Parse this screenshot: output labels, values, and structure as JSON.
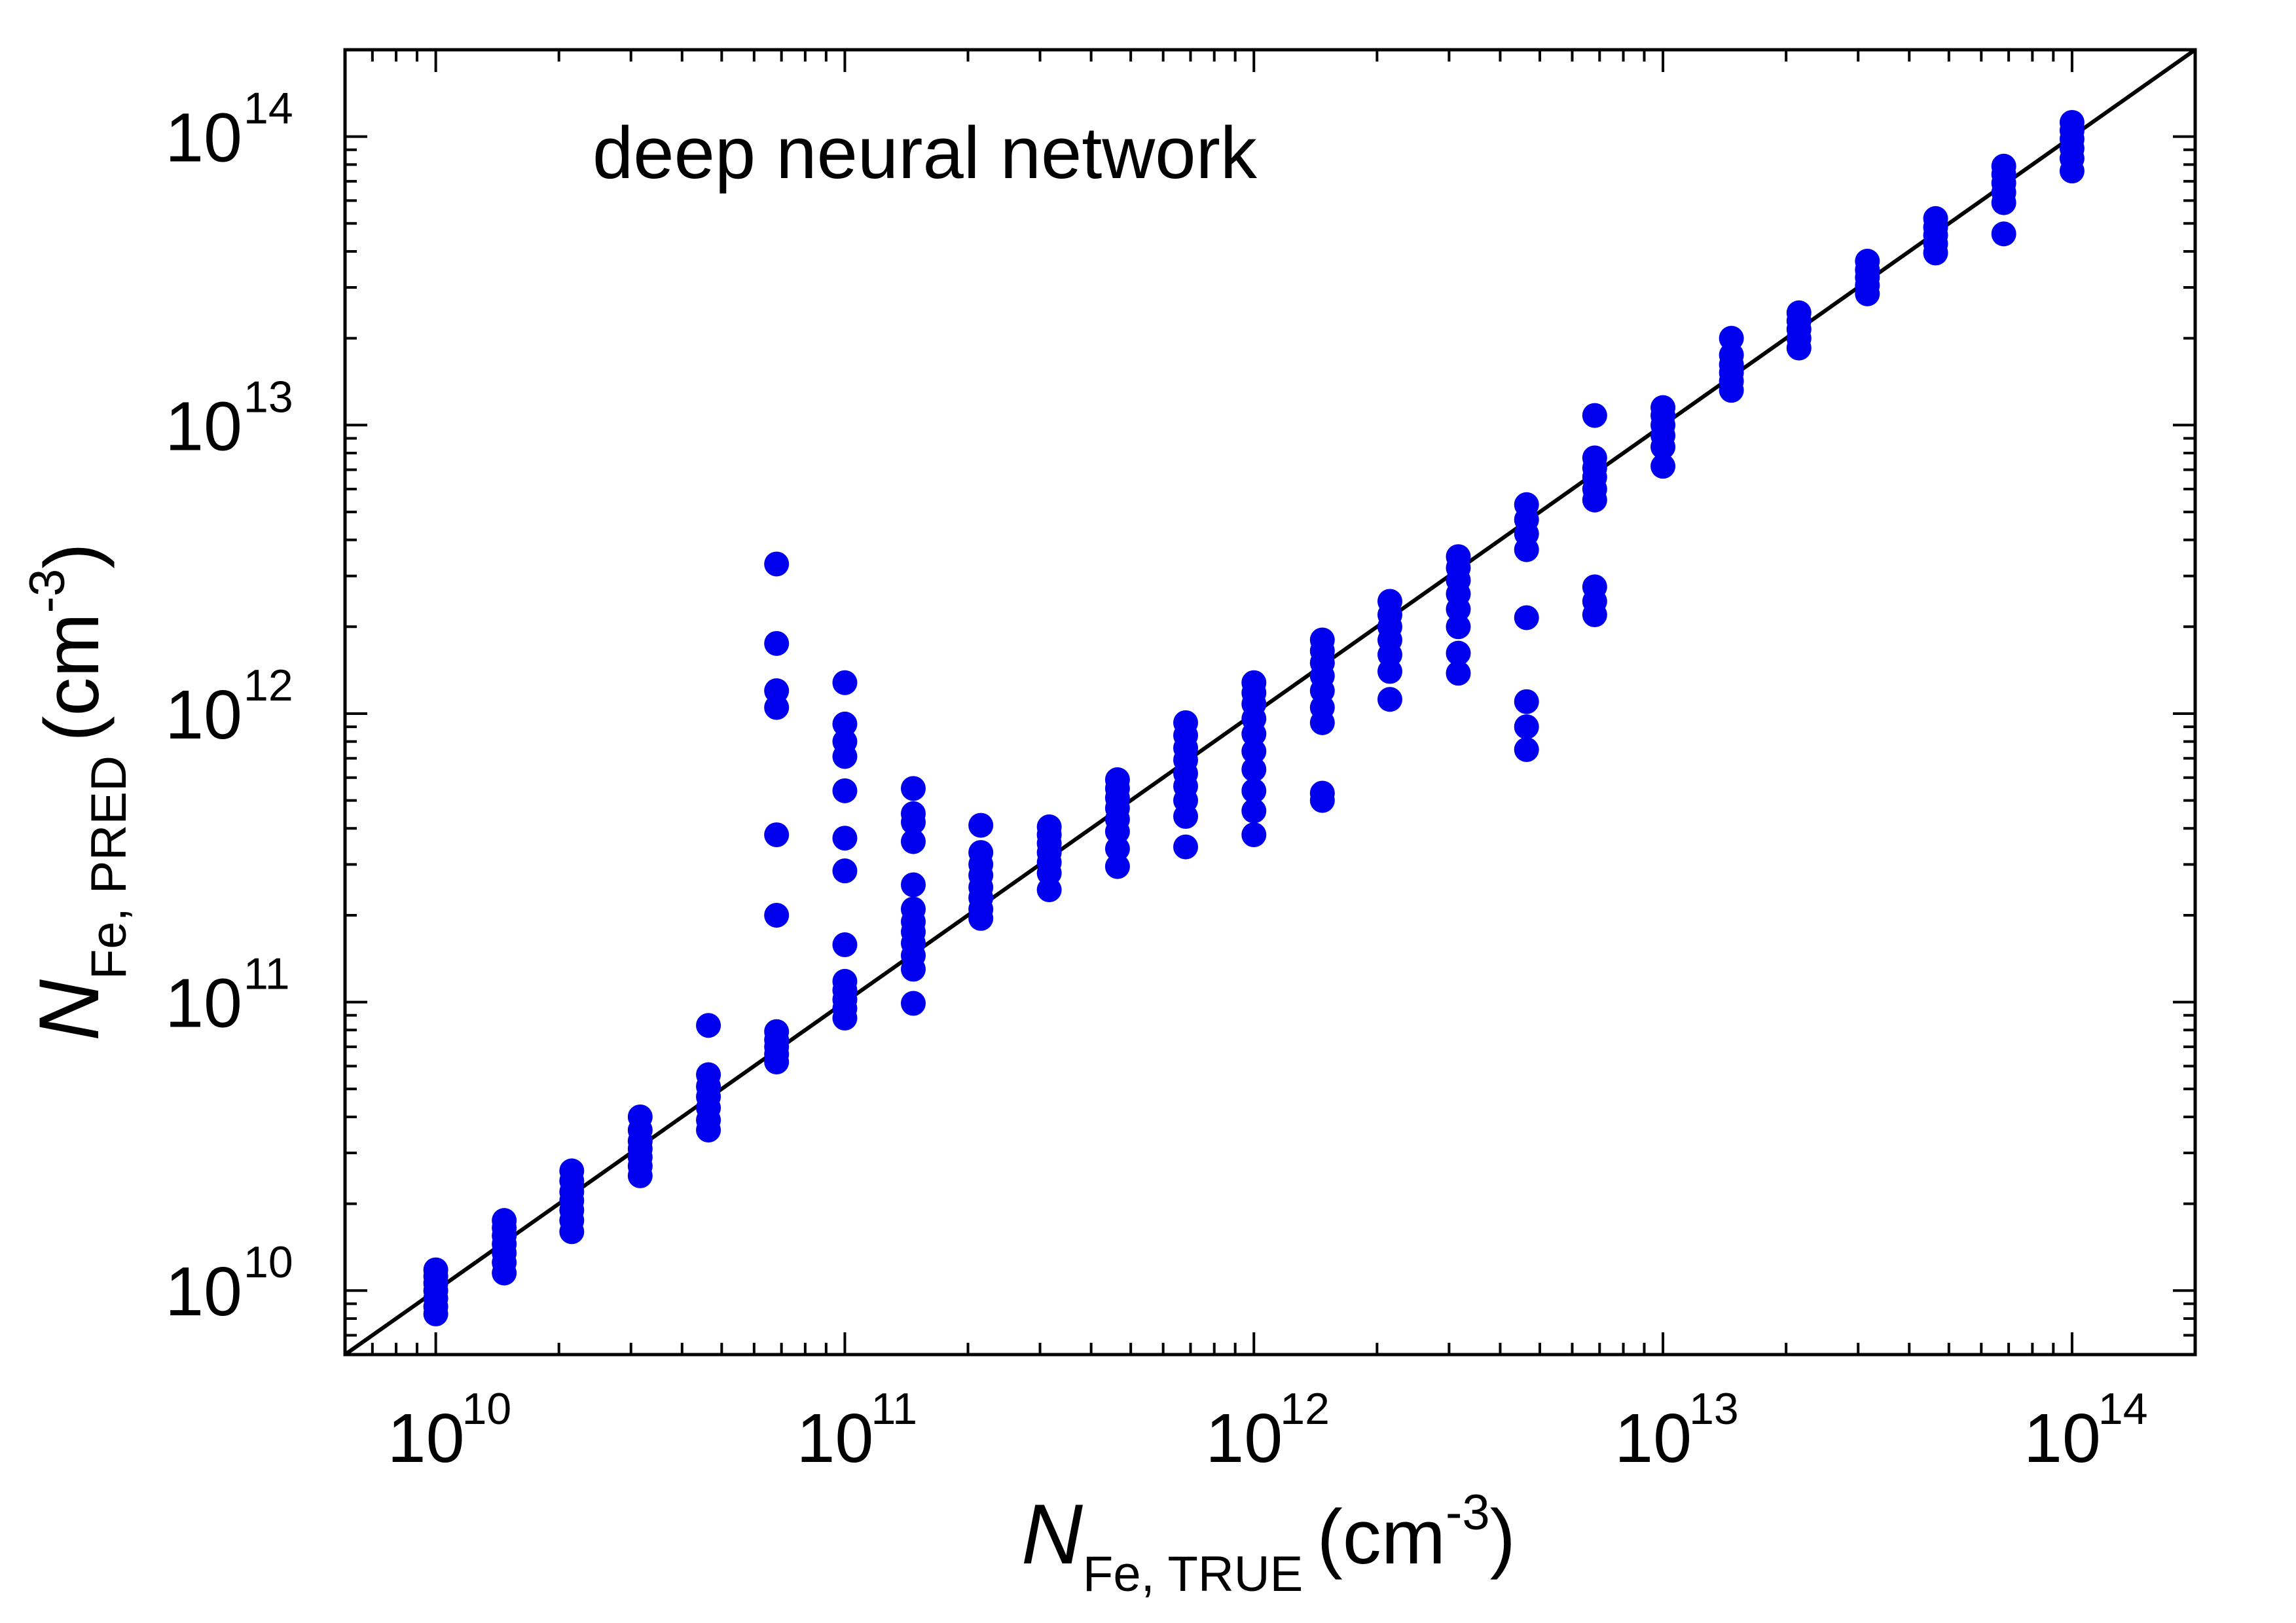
{
  "chart_data": {
    "type": "scatter",
    "title": "deep neural network",
    "x_axis": {
      "label_main": "N",
      "label_sub": "Fe, TRUE",
      "label_unit": "(cm",
      "label_exp": "-3",
      "label_close": ")",
      "scale": "log",
      "range": [
        6000000000.0,
        200000000000000.0
      ],
      "ticks": [
        {
          "base": "10",
          "exp": "10",
          "value": 10000000000.0
        },
        {
          "base": "10",
          "exp": "11",
          "value": 100000000000.0
        },
        {
          "base": "10",
          "exp": "12",
          "value": 1000000000000.0
        },
        {
          "base": "10",
          "exp": "13",
          "value": 10000000000000.0
        },
        {
          "base": "10",
          "exp": "14",
          "value": 100000000000000.0
        }
      ]
    },
    "y_axis": {
      "label_main": "N",
      "label_sub": "Fe, PRED",
      "label_unit": "(cm",
      "label_exp": "-3",
      "label_close": ")",
      "scale": "log",
      "range": [
        6000000000.0,
        200000000000000.0
      ],
      "ticks": [
        {
          "base": "10",
          "exp": "10",
          "value": 10000000000.0
        },
        {
          "base": "10",
          "exp": "11",
          "value": 100000000000.0
        },
        {
          "base": "10",
          "exp": "12",
          "value": 1000000000000.0
        },
        {
          "base": "10",
          "exp": "13",
          "value": 10000000000000.0
        },
        {
          "base": "10",
          "exp": "14",
          "value": 100000000000000.0
        }
      ]
    },
    "grid": false,
    "marker_color": "#0000ee",
    "reference_line": {
      "type": "y = x",
      "color": "#000000"
    },
    "series": [
      {
        "points": [
          [
            10000000000.0,
            8300000000.0
          ],
          [
            10000000000.0,
            8800000000.0
          ],
          [
            10000000000.0,
            9400000000.0
          ],
          [
            10000000000.0,
            10000000000.0
          ],
          [
            10000000000.0,
            10600000000.0
          ],
          [
            10000000000.0,
            11200000000.0
          ],
          [
            10000000000.0,
            11800000000.0
          ],
          [
            14700000000.0,
            11500000000.0
          ],
          [
            14700000000.0,
            12500000000.0
          ],
          [
            14700000000.0,
            13500000000.0
          ],
          [
            14700000000.0,
            14500000000.0
          ],
          [
            14700000000.0,
            15500000000.0
          ],
          [
            14700000000.0,
            16500000000.0
          ],
          [
            14700000000.0,
            17500000000.0
          ],
          [
            21500000000.0,
            16000000000.0
          ],
          [
            21500000000.0,
            17500000000.0
          ],
          [
            21500000000.0,
            19000000000.0
          ],
          [
            21500000000.0,
            20500000000.0
          ],
          [
            21500000000.0,
            22000000000.0
          ],
          [
            21500000000.0,
            24000000000.0
          ],
          [
            21500000000.0,
            26000000000.0
          ],
          [
            31600000000.0,
            25000000000.0
          ],
          [
            31600000000.0,
            27000000000.0
          ],
          [
            31600000000.0,
            29000000000.0
          ],
          [
            31600000000.0,
            31000000000.0
          ],
          [
            31600000000.0,
            33000000000.0
          ],
          [
            31600000000.0,
            36000000000.0
          ],
          [
            31600000000.0,
            40000000000.0
          ],
          [
            46400000000.0,
            36000000000.0
          ],
          [
            46400000000.0,
            39000000000.0
          ],
          [
            46400000000.0,
            43000000000.0
          ],
          [
            46400000000.0,
            47000000000.0
          ],
          [
            46400000000.0,
            51000000000.0
          ],
          [
            46400000000.0,
            56000000000.0
          ],
          [
            46400000000.0,
            83000000000.0
          ],
          [
            68100000000.0,
            62000000000.0
          ],
          [
            68100000000.0,
            66000000000.0
          ],
          [
            68100000000.0,
            70000000000.0
          ],
          [
            68100000000.0,
            74000000000.0
          ],
          [
            68100000000.0,
            79000000000.0
          ],
          [
            68100000000.0,
            200000000000.0
          ],
          [
            68100000000.0,
            380000000000.0
          ],
          [
            68100000000.0,
            1050000000000.0
          ],
          [
            68100000000.0,
            1200000000000.0
          ],
          [
            68100000000.0,
            1750000000000.0
          ],
          [
            68100000000.0,
            3300000000000.0
          ],
          [
            100000000000.0,
            88000000000.0
          ],
          [
            100000000000.0,
            95000000000.0
          ],
          [
            100000000000.0,
            102000000000.0
          ],
          [
            100000000000.0,
            110000000000.0
          ],
          [
            100000000000.0,
            118000000000.0
          ],
          [
            100000000000.0,
            158000000000.0
          ],
          [
            100000000000.0,
            285000000000.0
          ],
          [
            100000000000.0,
            370000000000.0
          ],
          [
            100000000000.0,
            540000000000.0
          ],
          [
            100000000000.0,
            710000000000.0
          ],
          [
            100000000000.0,
            800000000000.0
          ],
          [
            100000000000.0,
            920000000000.0
          ],
          [
            100000000000.0,
            1280000000000.0
          ],
          [
            147000000000.0,
            99000000000.0
          ],
          [
            147000000000.0,
            130000000000.0
          ],
          [
            147000000000.0,
            145000000000.0
          ],
          [
            147000000000.0,
            160000000000.0
          ],
          [
            147000000000.0,
            175000000000.0
          ],
          [
            147000000000.0,
            190000000000.0
          ],
          [
            147000000000.0,
            210000000000.0
          ],
          [
            147000000000.0,
            255000000000.0
          ],
          [
            147000000000.0,
            360000000000.0
          ],
          [
            147000000000.0,
            420000000000.0
          ],
          [
            147000000000.0,
            450000000000.0
          ],
          [
            147000000000.0,
            550000000000.0
          ],
          [
            215000000000.0,
            195000000000.0
          ],
          [
            215000000000.0,
            210000000000.0
          ],
          [
            215000000000.0,
            230000000000.0
          ],
          [
            215000000000.0,
            250000000000.0
          ],
          [
            215000000000.0,
            275000000000.0
          ],
          [
            215000000000.0,
            300000000000.0
          ],
          [
            215000000000.0,
            330000000000.0
          ],
          [
            215000000000.0,
            410000000000.0
          ],
          [
            316000000000.0,
            245000000000.0
          ],
          [
            316000000000.0,
            280000000000.0
          ],
          [
            316000000000.0,
            305000000000.0
          ],
          [
            316000000000.0,
            330000000000.0
          ],
          [
            316000000000.0,
            355000000000.0
          ],
          [
            316000000000.0,
            380000000000.0
          ],
          [
            316000000000.0,
            405000000000.0
          ],
          [
            464000000000.0,
            295000000000.0
          ],
          [
            464000000000.0,
            340000000000.0
          ],
          [
            464000000000.0,
            390000000000.0
          ],
          [
            464000000000.0,
            430000000000.0
          ],
          [
            464000000000.0,
            470000000000.0
          ],
          [
            464000000000.0,
            510000000000.0
          ],
          [
            464000000000.0,
            550000000000.0
          ],
          [
            464000000000.0,
            590000000000.0
          ],
          [
            681000000000.0,
            345000000000.0
          ],
          [
            681000000000.0,
            440000000000.0
          ],
          [
            681000000000.0,
            500000000000.0
          ],
          [
            681000000000.0,
            560000000000.0
          ],
          [
            681000000000.0,
            620000000000.0
          ],
          [
            681000000000.0,
            690000000000.0
          ],
          [
            681000000000.0,
            760000000000.0
          ],
          [
            681000000000.0,
            840000000000.0
          ],
          [
            681000000000.0,
            930000000000.0
          ],
          [
            1000000000000.0,
            380000000000.0
          ],
          [
            1000000000000.0,
            460000000000.0
          ],
          [
            1000000000000.0,
            540000000000.0
          ],
          [
            1000000000000.0,
            640000000000.0
          ],
          [
            1000000000000.0,
            740000000000.0
          ],
          [
            1000000000000.0,
            850000000000.0
          ],
          [
            1000000000000.0,
            960000000000.0
          ],
          [
            1000000000000.0,
            1080000000000.0
          ],
          [
            1000000000000.0,
            1180000000000.0
          ],
          [
            1000000000000.0,
            1280000000000.0
          ],
          [
            1470000000000.0,
            500000000000.0
          ],
          [
            1470000000000.0,
            530000000000.0
          ],
          [
            1470000000000.0,
            930000000000.0
          ],
          [
            1470000000000.0,
            1050000000000.0
          ],
          [
            1470000000000.0,
            1200000000000.0
          ],
          [
            1470000000000.0,
            1350000000000.0
          ],
          [
            1470000000000.0,
            1500000000000.0
          ],
          [
            1470000000000.0,
            1650000000000.0
          ],
          [
            1470000000000.0,
            1800000000000.0
          ],
          [
            2150000000000.0,
            1120000000000.0
          ],
          [
            2150000000000.0,
            1400000000000.0
          ],
          [
            2150000000000.0,
            1600000000000.0
          ],
          [
            2150000000000.0,
            1800000000000.0
          ],
          [
            2150000000000.0,
            2000000000000.0
          ],
          [
            2150000000000.0,
            2200000000000.0
          ],
          [
            2150000000000.0,
            2450000000000.0
          ],
          [
            3160000000000.0,
            1380000000000.0
          ],
          [
            3160000000000.0,
            1620000000000.0
          ],
          [
            3160000000000.0,
            2000000000000.0
          ],
          [
            3160000000000.0,
            2300000000000.0
          ],
          [
            3160000000000.0,
            2600000000000.0
          ],
          [
            3160000000000.0,
            2900000000000.0
          ],
          [
            3160000000000.0,
            3200000000000.0
          ],
          [
            3160000000000.0,
            3500000000000.0
          ],
          [
            4640000000000.0,
            750000000000.0
          ],
          [
            4640000000000.0,
            900000000000.0
          ],
          [
            4640000000000.0,
            1100000000000.0
          ],
          [
            4640000000000.0,
            2150000000000.0
          ],
          [
            4640000000000.0,
            3700000000000.0
          ],
          [
            4640000000000.0,
            4200000000000.0
          ],
          [
            4640000000000.0,
            4700000000000.0
          ],
          [
            4640000000000.0,
            5300000000000.0
          ],
          [
            6810000000000.0,
            2200000000000.0
          ],
          [
            6810000000000.0,
            2450000000000.0
          ],
          [
            6810000000000.0,
            2750000000000.0
          ],
          [
            6810000000000.0,
            5500000000000.0
          ],
          [
            6810000000000.0,
            6000000000000.0
          ],
          [
            6810000000000.0,
            6600000000000.0
          ],
          [
            6810000000000.0,
            7100000000000.0
          ],
          [
            6810000000000.0,
            7700000000000.0
          ],
          [
            6810000000000.0,
            10800000000000.0
          ],
          [
            10000000000000.0,
            7200000000000.0
          ],
          [
            10000000000000.0,
            8400000000000.0
          ],
          [
            10000000000000.0,
            9200000000000.0
          ],
          [
            10000000000000.0,
            10000000000000.0
          ],
          [
            10000000000000.0,
            10800000000000.0
          ],
          [
            10000000000000.0,
            11500000000000.0
          ],
          [
            14700000000000.0,
            13200000000000.0
          ],
          [
            14700000000000.0,
            14200000000000.0
          ],
          [
            14700000000000.0,
            15200000000000.0
          ],
          [
            14700000000000.0,
            16200000000000.0
          ],
          [
            14700000000000.0,
            17500000000000.0
          ],
          [
            14700000000000.0,
            20000000000000.0
          ],
          [
            21500000000000.0,
            18500000000000.0
          ],
          [
            21500000000000.0,
            20000000000000.0
          ],
          [
            21500000000000.0,
            21500000000000.0
          ],
          [
            21500000000000.0,
            23000000000000.0
          ],
          [
            21500000000000.0,
            24500000000000.0
          ],
          [
            31600000000000.0,
            28500000000000.0
          ],
          [
            31600000000000.0,
            30500000000000.0
          ],
          [
            31600000000000.0,
            32500000000000.0
          ],
          [
            31600000000000.0,
            34500000000000.0
          ],
          [
            31600000000000.0,
            37000000000000.0
          ],
          [
            46400000000000.0,
            39500000000000.0
          ],
          [
            46400000000000.0,
            42500000000000.0
          ],
          [
            46400000000000.0,
            45500000000000.0
          ],
          [
            46400000000000.0,
            48500000000000.0
          ],
          [
            46400000000000.0,
            52000000000000.0
          ],
          [
            68100000000000.0,
            46000000000000.0
          ],
          [
            68100000000000.0,
            59000000000000.0
          ],
          [
            68100000000000.0,
            64000000000000.0
          ],
          [
            68100000000000.0,
            69000000000000.0
          ],
          [
            68100000000000.0,
            74000000000000.0
          ],
          [
            68100000000000.0,
            79000000000000.0
          ],
          [
            100000000000000.0,
            76000000000000.0
          ],
          [
            100000000000000.0,
            84000000000000.0
          ],
          [
            100000000000000.0,
            91000000000000.0
          ],
          [
            100000000000000.0,
            98000000000000.0
          ],
          [
            100000000000000.0,
            105000000000000.0
          ],
          [
            100000000000000.0,
            112000000000000.0
          ]
        ]
      }
    ]
  }
}
